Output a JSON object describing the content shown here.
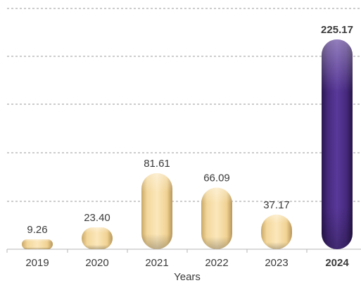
{
  "chart_data": {
    "type": "bar",
    "categories": [
      "2019",
      "2020",
      "2021",
      "2022",
      "2023",
      "2024"
    ],
    "values": [
      9.26,
      23.4,
      81.61,
      66.09,
      37.17,
      225.17
    ],
    "value_labels": [
      "9.26",
      "23.40",
      "81.61",
      "66.09",
      "37.17",
      "225.17"
    ],
    "highlight_index": 5,
    "xlabel": "Years",
    "ylabel": "",
    "ylim": [
      0,
      250
    ],
    "grid": true,
    "colors": {
      "bar": "#f6dc9f",
      "bar_highlight": "#4b2f86",
      "highlight_text": "#4b2f86",
      "text": "#3a3a3a"
    }
  }
}
